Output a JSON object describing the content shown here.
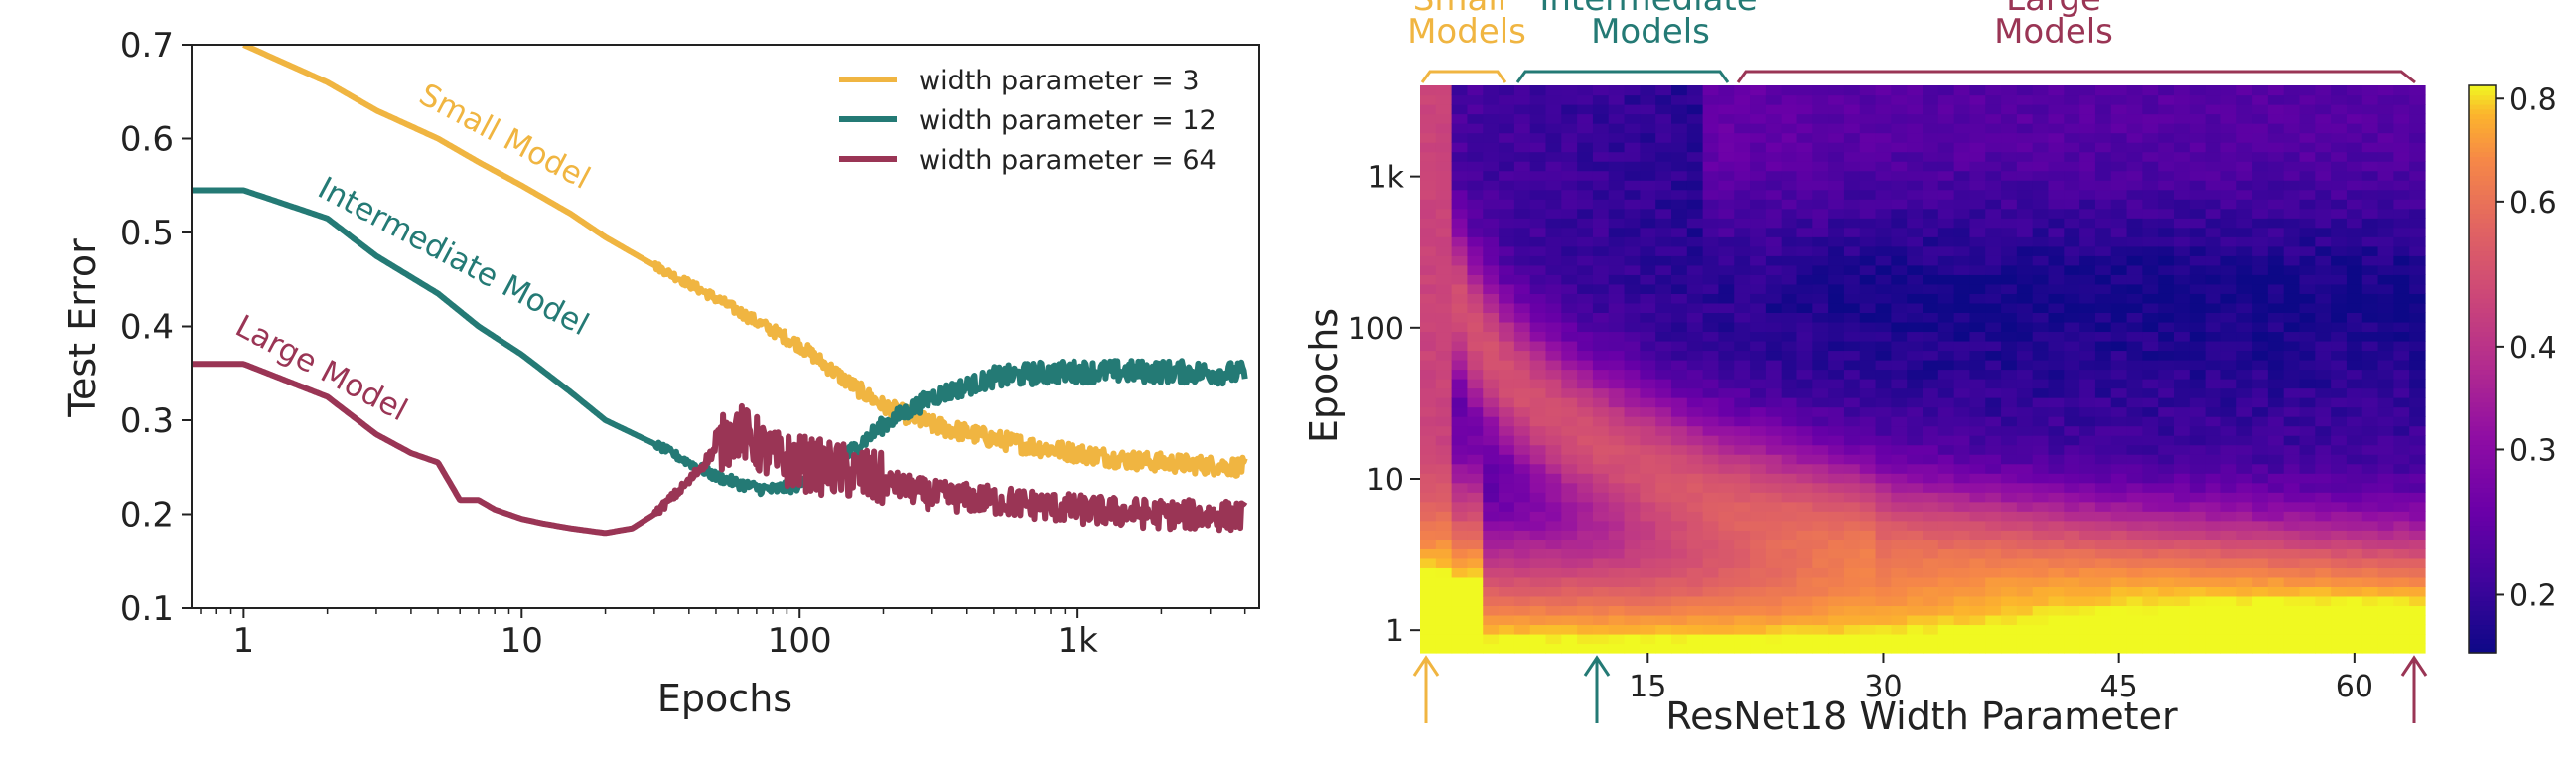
{
  "chart_data": [
    {
      "type": "line",
      "xscale": "log",
      "xlabel": "Epochs",
      "ylabel": "Test Error",
      "xlim": [
        0.65,
        4500
      ],
      "ylim": [
        0.1,
        0.7
      ],
      "xticks": [
        1,
        10,
        100,
        1000
      ],
      "xtick_labels": [
        "1",
        "10",
        "100",
        "1k"
      ],
      "yticks": [
        0.1,
        0.2,
        0.3,
        0.4,
        0.5,
        0.6,
        0.7
      ],
      "ytick_labels": [
        "0.1",
        "0.2",
        "0.3",
        "0.4",
        "0.5",
        "0.6",
        "0.7"
      ],
      "legend_position": "top-right",
      "grid": false,
      "series": [
        {
          "name": "width parameter = 3",
          "color": "#F0B541",
          "annotation": "Small Model",
          "x": [
            1,
            2,
            3,
            5,
            7,
            10,
            15,
            20,
            30,
            50,
            70,
            100,
            150,
            200,
            300,
            500,
            700,
            1000,
            1500,
            2000,
            3000,
            4000
          ],
          "y": [
            0.7,
            0.66,
            0.63,
            0.6,
            0.575,
            0.55,
            0.52,
            0.495,
            0.465,
            0.43,
            0.405,
            0.38,
            0.34,
            0.315,
            0.295,
            0.28,
            0.272,
            0.265,
            0.258,
            0.255,
            0.252,
            0.25
          ]
        },
        {
          "name": "width parameter = 12",
          "color": "#247A75",
          "annotation": "Intermediate Model",
          "x": [
            0.65,
            1,
            2,
            3,
            5,
            7,
            10,
            15,
            20,
            30,
            40,
            50,
            60,
            70,
            80,
            100,
            120,
            150,
            200,
            300,
            500,
            700,
            1000,
            2000,
            4000
          ],
          "y": [
            0.545,
            0.545,
            0.515,
            0.475,
            0.435,
            0.4,
            0.37,
            0.33,
            0.3,
            0.275,
            0.255,
            0.24,
            0.233,
            0.228,
            0.226,
            0.232,
            0.245,
            0.265,
            0.295,
            0.325,
            0.345,
            0.35,
            0.352,
            0.352,
            0.35
          ]
        },
        {
          "name": "width parameter = 64",
          "color": "#9A3555",
          "annotation": "Large Model",
          "x": [
            0.65,
            1,
            2,
            3,
            4,
            5,
            6,
            7,
            8,
            10,
            12,
            15,
            20,
            25,
            30,
            40,
            50,
            60,
            70,
            80,
            100,
            120,
            150,
            200,
            300,
            500,
            1000,
            2000,
            4000
          ],
          "y": [
            0.36,
            0.36,
            0.325,
            0.285,
            0.265,
            0.255,
            0.215,
            0.215,
            0.205,
            0.195,
            0.19,
            0.185,
            0.18,
            0.185,
            0.2,
            0.235,
            0.27,
            0.29,
            0.275,
            0.26,
            0.255,
            0.25,
            0.245,
            0.235,
            0.22,
            0.215,
            0.205,
            0.2,
            0.198
          ]
        }
      ]
    },
    {
      "type": "heatmap",
      "xlabel": "ResNet18 Width Parameter",
      "ylabel": "Epochs",
      "xlim": [
        1,
        64
      ],
      "xticks": [
        15,
        30,
        45,
        60
      ],
      "xtick_labels": [
        "15",
        "30",
        "45",
        "60"
      ],
      "yscale": "log",
      "ylim": [
        1,
        4000
      ],
      "yticks": [
        1,
        10,
        100,
        1000
      ],
      "ytick_labels": [
        "1",
        "10",
        "100",
        "1k"
      ],
      "colormap": "plasma",
      "colorbar": {
        "ticks": [
          0.2,
          0.3,
          0.4,
          0.6,
          0.8
        ],
        "tick_labels": [
          "0.2",
          "0.3",
          "0.4",
          "0.6",
          "0.8"
        ],
        "range": [
          0.17,
          0.83
        ]
      },
      "model_regions": [
        {
          "label": "Small Models",
          "from": 1,
          "to": 6,
          "color": "#F0B541",
          "arrow_at": 1
        },
        {
          "label": "Intermediate Models",
          "from": 8,
          "to": 20,
          "color": "#247A75",
          "arrow_at": 12
        },
        {
          "label": "Large Models",
          "from": 21,
          "to": 64,
          "color": "#9A3555",
          "arrow_at": 64
        }
      ]
    }
  ]
}
